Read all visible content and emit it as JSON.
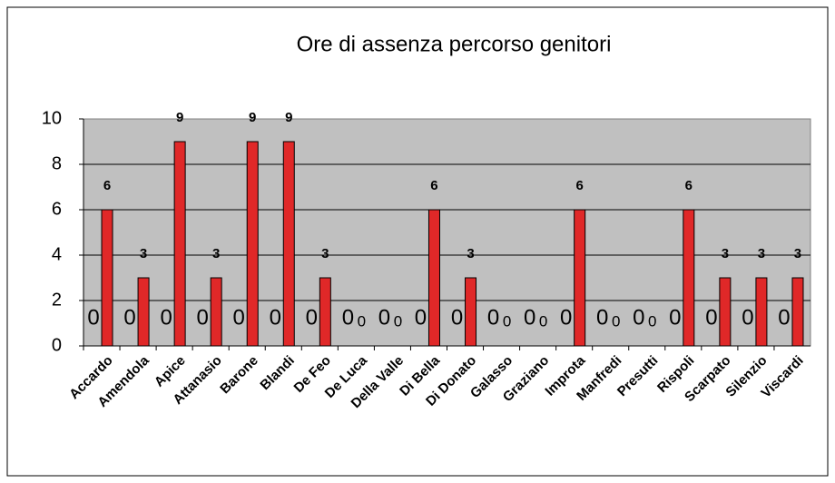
{
  "chart_data": {
    "type": "bar",
    "title": "Ore di assenza percorso genitori",
    "categories": [
      "Accardo",
      "Amendola",
      "Apice",
      "Attanasio",
      "Barone",
      "Blandi",
      "De Feo",
      "De Luca",
      "Della Valle",
      "Di Bella",
      "Di Donato",
      "Galasso",
      "Graziano",
      "Improta",
      "Manfredi",
      "Presutti",
      "Rispoli",
      "Scarpato",
      "Silenzio",
      "Viscardi"
    ],
    "series": [
      {
        "color": "#000080",
        "values": [
          0,
          0,
          0,
          0,
          0,
          0,
          0,
          0,
          0,
          0,
          0,
          0,
          0,
          0,
          0,
          0,
          0,
          0,
          0,
          0
        ]
      },
      {
        "color": "#e02828",
        "values": [
          6,
          3,
          9,
          3,
          9,
          9,
          3,
          0,
          0,
          6,
          3,
          0,
          0,
          6,
          0,
          0,
          6,
          3,
          3,
          3
        ]
      }
    ],
    "ylim": [
      0,
      10
    ],
    "yticks": [
      0,
      2,
      4,
      6,
      8,
      10
    ],
    "grid": true
  }
}
